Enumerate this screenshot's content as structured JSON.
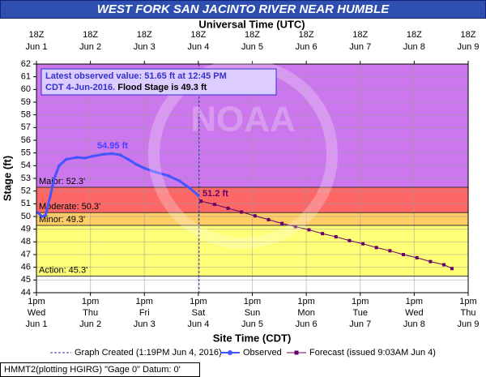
{
  "chart_data": {
    "type": "hydrograph",
    "title": "WEST FORK SAN JACINTO RIVER NEAR HUMBLE",
    "x_label": "Site Time (CDT)",
    "x2_label": "Universal Time (UTC)",
    "y_label": "Stage (ft)",
    "xlim": [
      0,
      8
    ],
    "ylim": [
      44,
      62
    ],
    "xticks": [
      {
        "value": 0,
        "label": [
          "1pm",
          "Wed",
          "Jun 1"
        ]
      },
      {
        "value": 1,
        "label": [
          "1pm",
          "Thu",
          "Jun 2"
        ]
      },
      {
        "value": 2,
        "label": [
          "1pm",
          "Fri",
          "Jun 3"
        ]
      },
      {
        "value": 3,
        "label": [
          "1pm",
          "Sat",
          "Jun 4"
        ]
      },
      {
        "value": 4,
        "label": [
          "1pm",
          "Sun",
          "Jun 5"
        ]
      },
      {
        "value": 5,
        "label": [
          "1pm",
          "Mon",
          "Jun 6"
        ]
      },
      {
        "value": 6,
        "label": [
          "1pm",
          "Tue",
          "Jun 7"
        ]
      },
      {
        "value": 7,
        "label": [
          "1pm",
          "Wed",
          "Jun 8"
        ]
      },
      {
        "value": 8,
        "label": [
          "1pm",
          "Thu",
          "Jun 9"
        ]
      }
    ],
    "x2ticks": [
      {
        "value": 0,
        "label": [
          "18Z",
          "Jun 1"
        ]
      },
      {
        "value": 1,
        "label": [
          "18Z",
          "Jun 2"
        ]
      },
      {
        "value": 2,
        "label": [
          "18Z",
          "Jun 3"
        ]
      },
      {
        "value": 3,
        "label": [
          "18Z",
          "Jun 4"
        ]
      },
      {
        "value": 4,
        "label": [
          "18Z",
          "Jun 5"
        ]
      },
      {
        "value": 5,
        "label": [
          "18Z",
          "Jun 6"
        ]
      },
      {
        "value": 6,
        "label": [
          "18Z",
          "Jun 7"
        ]
      },
      {
        "value": 7,
        "label": [
          "18Z",
          "Jun 8"
        ]
      },
      {
        "value": 8,
        "label": [
          "18Z",
          "Jun 9"
        ]
      }
    ],
    "yticks": [
      44,
      45,
      46,
      47,
      48,
      49,
      50,
      51,
      52,
      53,
      54,
      55,
      56,
      57,
      58,
      59,
      60,
      61,
      62
    ],
    "grid": true,
    "flood_stages": [
      {
        "label": "Action: 45.3'",
        "value": 45.3,
        "color": "#ffff77"
      },
      {
        "label": "Minor: 49.3'",
        "value": 49.3,
        "color": "#ffcc66"
      },
      {
        "label": "Moderate: 50.3'",
        "value": 50.3,
        "color": "#ff6666"
      },
      {
        "label": "Major: 52.3'",
        "value": 52.3,
        "color": "#cc77ee"
      }
    ],
    "graph_created": {
      "name": "Graph Created (1:19PM Jun 4, 2016)",
      "x": 3.013
    },
    "series": [
      {
        "name": "Observed",
        "color": "#4455ff",
        "x": [
          0.03,
          0.1,
          0.17,
          0.25,
          0.33,
          0.42,
          0.55,
          0.75,
          0.9,
          1.05,
          1.25,
          1.4,
          1.55,
          1.7,
          1.85,
          2.0,
          2.2,
          2.45,
          2.65,
          2.85,
          3.0
        ],
        "values": [
          50.3,
          50.0,
          50.1,
          51.5,
          53.0,
          54.0,
          54.5,
          54.65,
          54.6,
          54.75,
          54.9,
          54.95,
          54.85,
          54.5,
          54.1,
          53.8,
          53.5,
          53.2,
          52.8,
          52.2,
          51.65
        ]
      },
      {
        "name": "Forecast (issued 9:03AM Jun 4)",
        "color": "#660066",
        "x": [
          3.05,
          3.3,
          3.55,
          3.8,
          4.05,
          4.3,
          4.55,
          4.8,
          5.05,
          5.3,
          5.55,
          5.8,
          6.05,
          6.3,
          6.55,
          6.8,
          7.05,
          7.3,
          7.55,
          7.7
        ],
        "values": [
          51.2,
          50.95,
          50.65,
          50.35,
          50.05,
          49.75,
          49.45,
          49.2,
          48.95,
          48.65,
          48.4,
          48.1,
          47.85,
          47.55,
          47.3,
          47.0,
          46.75,
          46.45,
          46.2,
          45.9
        ]
      }
    ],
    "annotations": [
      "54.95 ft",
      "51.2 ft"
    ],
    "info_box": [
      "Latest observed value: 51.65 ft at 12:45 PM",
      "CDT 4-Jun-2016.",
      "Flood Stage is 49.3 ft"
    ],
    "watermark": "NOAA",
    "footer": "HMMT2(plotting HGIRG) \"Gage 0\" Datum: 0'"
  }
}
